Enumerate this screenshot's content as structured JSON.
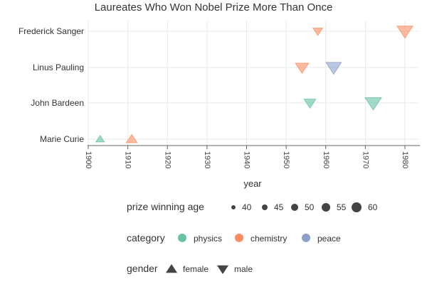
{
  "chart_data": {
    "type": "scatter",
    "title": "Laureates Who Won Nobel Prize More Than Once",
    "xlabel": "year",
    "ylabel": "",
    "xlim": [
      1899,
      1984
    ],
    "x_ticks": [
      1900,
      1910,
      1920,
      1930,
      1940,
      1950,
      1960,
      1970,
      1980
    ],
    "categories": [
      "Marie Curie",
      "John Bardeen",
      "Linus Pauling",
      "Frederick Sanger"
    ],
    "grid": true,
    "points": [
      {
        "laureate": "Marie Curie",
        "year": 1903,
        "age": 36,
        "category": "physics",
        "gender": "female"
      },
      {
        "laureate": "Marie Curie",
        "year": 1911,
        "age": 44,
        "category": "chemistry",
        "gender": "female"
      },
      {
        "laureate": "John Bardeen",
        "year": 1956,
        "age": 48,
        "category": "physics",
        "gender": "male"
      },
      {
        "laureate": "John Bardeen",
        "year": 1972,
        "age": 64,
        "category": "physics",
        "gender": "male"
      },
      {
        "laureate": "Linus Pauling",
        "year": 1954,
        "age": 53,
        "category": "chemistry",
        "gender": "male"
      },
      {
        "laureate": "Linus Pauling",
        "year": 1962,
        "age": 61,
        "category": "peace",
        "gender": "male"
      },
      {
        "laureate": "Frederick Sanger",
        "year": 1958,
        "age": 40,
        "category": "chemistry",
        "gender": "male"
      },
      {
        "laureate": "Frederick Sanger",
        "year": 1980,
        "age": 62,
        "category": "chemistry",
        "gender": "male"
      }
    ],
    "legends": {
      "size": {
        "title": "prize winning age",
        "values": [
          40,
          45,
          50,
          55,
          60
        ]
      },
      "color": {
        "title": "category",
        "items": [
          {
            "label": "physics",
            "color": "#66c2a5"
          },
          {
            "label": "chemistry",
            "color": "#fc8d62"
          },
          {
            "label": "peace",
            "color": "#8da0cb"
          }
        ]
      },
      "shape": {
        "title": "gender",
        "items": [
          {
            "label": "female",
            "shape": "triangle-up"
          },
          {
            "label": "male",
            "shape": "triangle-down"
          }
        ]
      }
    }
  }
}
